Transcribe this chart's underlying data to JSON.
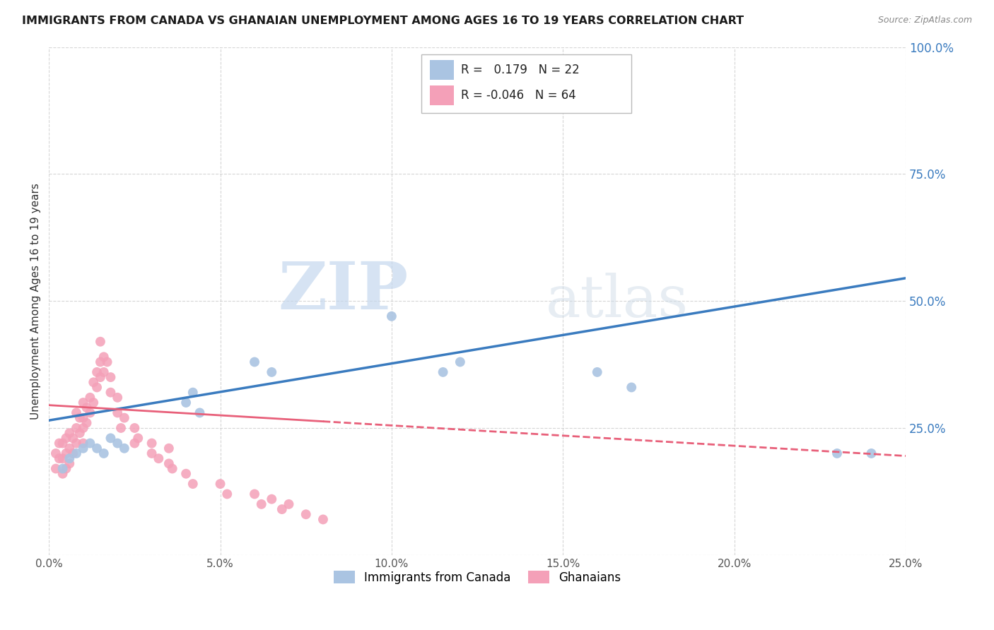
{
  "title": "IMMIGRANTS FROM CANADA VS GHANAIAN UNEMPLOYMENT AMONG AGES 16 TO 19 YEARS CORRELATION CHART",
  "source": "Source: ZipAtlas.com",
  "ylabel_left": "Unemployment Among Ages 16 to 19 years",
  "watermark_zip": "ZIP",
  "watermark_atlas": "atlas",
  "xlim": [
    0.0,
    0.25
  ],
  "ylim": [
    0.0,
    1.0
  ],
  "xticks": [
    0.0,
    0.05,
    0.1,
    0.15,
    0.2,
    0.25
  ],
  "yticks_right": [
    0.25,
    0.5,
    0.75,
    1.0
  ],
  "legend1_label": "Immigrants from Canada",
  "legend2_label": "Ghanaians",
  "R1": 0.179,
  "N1": 22,
  "R2": -0.046,
  "N2": 64,
  "color_blue": "#aac4e2",
  "color_pink": "#f4a0b8",
  "color_blue_line": "#3a7bbf",
  "color_pink_line": "#e8607a",
  "blue_scatter_x": [
    0.004,
    0.006,
    0.008,
    0.01,
    0.012,
    0.014,
    0.016,
    0.018,
    0.02,
    0.022,
    0.04,
    0.042,
    0.044,
    0.06,
    0.065,
    0.1,
    0.115,
    0.12,
    0.16,
    0.17,
    0.23,
    0.24
  ],
  "blue_scatter_y": [
    0.17,
    0.19,
    0.2,
    0.21,
    0.22,
    0.21,
    0.2,
    0.23,
    0.22,
    0.21,
    0.3,
    0.32,
    0.28,
    0.38,
    0.36,
    0.47,
    0.36,
    0.38,
    0.36,
    0.33,
    0.2,
    0.2
  ],
  "blue_trendline": [
    0.0,
    0.25,
    0.265,
    0.545
  ],
  "pink_trendline": [
    0.0,
    0.25,
    0.295,
    0.195
  ],
  "pink_scatter_x": [
    0.002,
    0.002,
    0.003,
    0.003,
    0.004,
    0.004,
    0.004,
    0.005,
    0.005,
    0.005,
    0.006,
    0.006,
    0.006,
    0.007,
    0.007,
    0.008,
    0.008,
    0.008,
    0.009,
    0.009,
    0.01,
    0.01,
    0.01,
    0.01,
    0.011,
    0.011,
    0.012,
    0.012,
    0.013,
    0.013,
    0.014,
    0.014,
    0.015,
    0.015,
    0.015,
    0.016,
    0.016,
    0.017,
    0.018,
    0.018,
    0.02,
    0.02,
    0.021,
    0.022,
    0.025,
    0.025,
    0.026,
    0.03,
    0.03,
    0.032,
    0.035,
    0.035,
    0.036,
    0.04,
    0.042,
    0.05,
    0.052,
    0.06,
    0.062,
    0.065,
    0.068,
    0.07,
    0.075,
    0.08
  ],
  "pink_scatter_y": [
    0.17,
    0.2,
    0.19,
    0.22,
    0.16,
    0.19,
    0.22,
    0.17,
    0.2,
    0.23,
    0.18,
    0.21,
    0.24,
    0.2,
    0.23,
    0.22,
    0.25,
    0.28,
    0.24,
    0.27,
    0.22,
    0.25,
    0.27,
    0.3,
    0.26,
    0.29,
    0.28,
    0.31,
    0.3,
    0.34,
    0.33,
    0.36,
    0.35,
    0.38,
    0.42,
    0.36,
    0.39,
    0.38,
    0.32,
    0.35,
    0.28,
    0.31,
    0.25,
    0.27,
    0.22,
    0.25,
    0.23,
    0.2,
    0.22,
    0.19,
    0.18,
    0.21,
    0.17,
    0.16,
    0.14,
    0.14,
    0.12,
    0.12,
    0.1,
    0.11,
    0.09,
    0.1,
    0.08,
    0.07
  ],
  "background_color": "#ffffff",
  "grid_color": "#cccccc"
}
